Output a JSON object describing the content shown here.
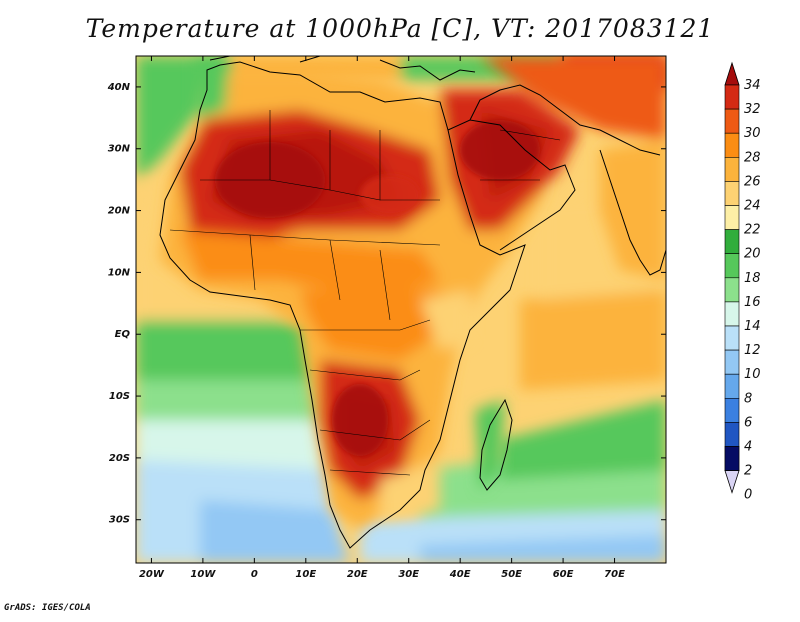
{
  "title": "Temperature at 1000hPa [C], VT: 2017083121",
  "credit": "GrADS: IGES/COLA",
  "map": {
    "projection": "latlon",
    "lon_range": [
      -23,
      80
    ],
    "lat_range": [
      -37,
      45
    ],
    "lon_ticks": [
      {
        "lon": -20,
        "label": "20W"
      },
      {
        "lon": -10,
        "label": "10W"
      },
      {
        "lon": 0,
        "label": "0"
      },
      {
        "lon": 10,
        "label": "10E"
      },
      {
        "lon": 20,
        "label": "20E"
      },
      {
        "lon": 30,
        "label": "30E"
      },
      {
        "lon": 40,
        "label": "40E"
      },
      {
        "lon": 50,
        "label": "50E"
      },
      {
        "lon": 60,
        "label": "60E"
      },
      {
        "lon": 70,
        "label": "70E"
      }
    ],
    "lat_ticks": [
      {
        "lat": 40,
        "label": "40N"
      },
      {
        "lat": 30,
        "label": "30N"
      },
      {
        "lat": 20,
        "label": "20N"
      },
      {
        "lat": 10,
        "label": "10N"
      },
      {
        "lat": 0,
        "label": "EQ"
      },
      {
        "lat": -10,
        "label": "10S"
      },
      {
        "lat": -20,
        "label": "20S"
      },
      {
        "lat": -30,
        "label": "30S"
      }
    ]
  },
  "colorbar": {
    "labels": [
      "34",
      "32",
      "30",
      "28",
      "26",
      "24",
      "22",
      "20",
      "18",
      "16",
      "14",
      "12",
      "10",
      "8",
      "6",
      "4",
      "2",
      "0"
    ],
    "colors": [
      "#a50d0d",
      "#d42a14",
      "#ee5a14",
      "#fb8d13",
      "#fcb33c",
      "#fdd273",
      "#fdefa6",
      "#31ad3c",
      "#56c85b",
      "#8ce08c",
      "#d7f6ea",
      "#bae0f8",
      "#93c8f4",
      "#65a8ec",
      "#3b80e0",
      "#2056c2",
      "#0e319a",
      "#050c64"
    ]
  },
  "colors": {
    "coast": "#000000",
    "ocean_cold": "#bae0f8",
    "ocean_cool": "#8ce08c",
    "ocean_warm": "#fdd273"
  }
}
